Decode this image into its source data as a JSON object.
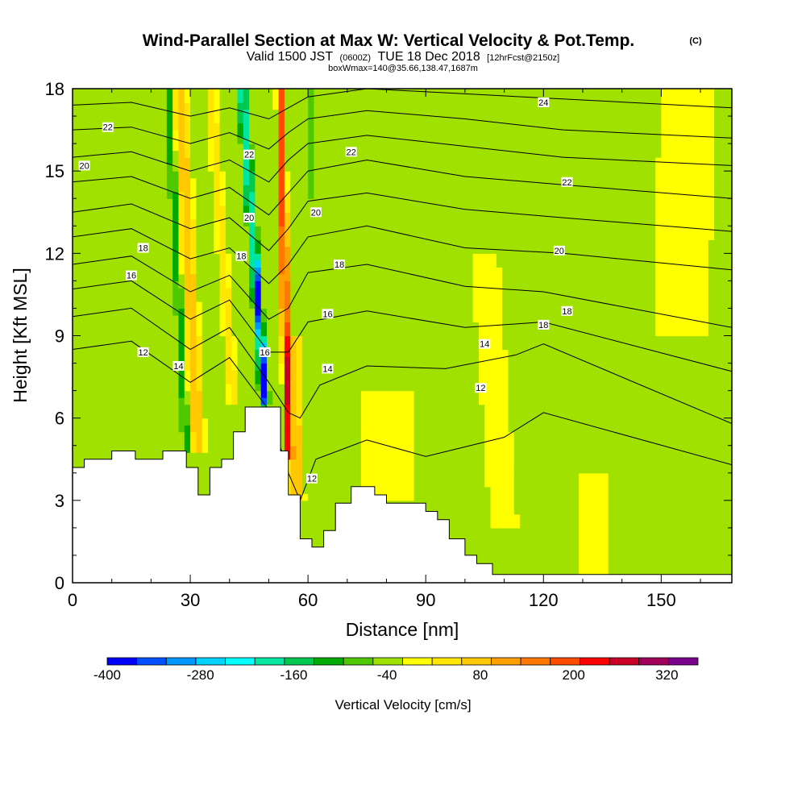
{
  "chart_data": {
    "type": "heatmap",
    "title": "Wind-Parallel Section at Max W: Vertical Velocity & Pot.Temp.",
    "title_mark": "(C)",
    "subtitle_parts": [
      "Valid 1500 JST",
      "(0600Z)",
      "TUE 18 Dec 2018",
      "[12hrFcst@2150z]"
    ],
    "subtitle2": "boxWmax=140@35.66,138.47,1687m",
    "xlabel": "Distance [nm]",
    "ylabel": "Height [Kft MSL]",
    "xlim": [
      0,
      168
    ],
    "ylim": [
      0,
      18
    ],
    "x_ticks": [
      0,
      30,
      60,
      90,
      120,
      150
    ],
    "x_tick_labels": [
      "0",
      "30",
      "60",
      "90",
      "120",
      "150"
    ],
    "y_ticks": [
      0,
      3,
      6,
      9,
      12,
      15,
      18
    ],
    "y_tick_labels": [
      "0",
      "3",
      "6",
      "9",
      "12",
      "15",
      "18"
    ],
    "colorbar": {
      "label": "Vertical Velocity [cm/s]",
      "min": -400,
      "max": 360,
      "step": 40,
      "tick_values": [
        -400,
        -280,
        -160,
        -40,
        80,
        200,
        320
      ],
      "tick_labels": [
        "-400",
        "-280",
        "-160",
        "-40",
        "80",
        "200",
        "320"
      ],
      "colors": [
        "#0000ff",
        "#0050ff",
        "#0096ff",
        "#00d2ff",
        "#00ffff",
        "#00e6a0",
        "#00c850",
        "#00aa00",
        "#50c800",
        "#a0e100",
        "#ffff00",
        "#ffe600",
        "#ffc800",
        "#ffa000",
        "#ff7800",
        "#ff4b00",
        "#ff0000",
        "#c80028",
        "#a0005a",
        "#78008c"
      ]
    },
    "terrain": [
      [
        0,
        4.2
      ],
      [
        3,
        4.2
      ],
      [
        3,
        4.5
      ],
      [
        10,
        4.5
      ],
      [
        10,
        4.8
      ],
      [
        16,
        4.8
      ],
      [
        16,
        4.5
      ],
      [
        23,
        4.5
      ],
      [
        23,
        4.8
      ],
      [
        29,
        4.8
      ],
      [
        29,
        4.2
      ],
      [
        32,
        4.2
      ],
      [
        32,
        3.2
      ],
      [
        35,
        3.2
      ],
      [
        35,
        4.2
      ],
      [
        38,
        4.2
      ],
      [
        38,
        4.5
      ],
      [
        41,
        4.5
      ],
      [
        41,
        5.5
      ],
      [
        44,
        5.5
      ],
      [
        44,
        6.4
      ],
      [
        53,
        6.4
      ],
      [
        53,
        4.8
      ],
      [
        55,
        4.8
      ],
      [
        55,
        3.2
      ],
      [
        58,
        3.2
      ],
      [
        58,
        1.6
      ],
      [
        61,
        1.6
      ],
      [
        61,
        1.3
      ],
      [
        64,
        1.3
      ],
      [
        64,
        1.9
      ],
      [
        67,
        1.9
      ],
      [
        67,
        2.9
      ],
      [
        71,
        2.9
      ],
      [
        71,
        3.5
      ],
      [
        77,
        3.5
      ],
      [
        77,
        3.2
      ],
      [
        80,
        3.2
      ],
      [
        80,
        2.9
      ],
      [
        90,
        2.9
      ],
      [
        90,
        2.6
      ],
      [
        93,
        2.6
      ],
      [
        93,
        2.3
      ],
      [
        96,
        2.3
      ],
      [
        96,
        1.6
      ],
      [
        100,
        1.6
      ],
      [
        100,
        1
      ],
      [
        103,
        1
      ],
      [
        103,
        0.7
      ],
      [
        107,
        0.7
      ],
      [
        107,
        0.3
      ],
      [
        168,
        0.3
      ],
      [
        168,
        0
      ],
      [
        0,
        0
      ]
    ],
    "background_value": -20,
    "velocity_features": [
      {
        "x": 29,
        "y0": 4.8,
        "y1": 18,
        "x_shift_per_kft": -0.35,
        "half_width": 1.2,
        "value": -100
      },
      {
        "x": 32,
        "y0": 4.8,
        "y1": 18,
        "x_shift_per_kft": -0.35,
        "half_width": 2.4,
        "value": 100
      },
      {
        "x": 41,
        "y0": 6.5,
        "y1": 18,
        "x_shift_per_kft": -0.5,
        "half_width": 1.8,
        "value": 60
      },
      {
        "x": 49,
        "y0": 6.4,
        "y1": 18,
        "x_shift_per_kft": -0.5,
        "half_width": 1.6,
        "value": -190
      },
      {
        "x": 50,
        "y0": 5,
        "y1": 12,
        "x_shift_per_kft": -0.5,
        "half_width": 0.8,
        "value": -250
      },
      {
        "x": 55,
        "y0": 4.5,
        "y1": 18,
        "x_shift_per_kft": -0.15,
        "half_width": 1.4,
        "value": 230
      },
      {
        "x": 57,
        "y0": 3,
        "y1": 9,
        "x_shift_per_kft": -0.1,
        "half_width": 2.5,
        "value": 100
      },
      {
        "x": 61,
        "y0": 14,
        "y1": 18,
        "x_shift_per_kft": -0.2,
        "half_width": 1.2,
        "value": -60
      },
      {
        "x": 80,
        "y0": 3,
        "y1": 7,
        "x_shift_per_kft": 0,
        "half_width": 10,
        "value": 20
      },
      {
        "x": 110,
        "y0": 2,
        "y1": 12,
        "x_shift_per_kft": -0.5,
        "half_width": 5,
        "value": 20
      },
      {
        "x": 133,
        "y0": 0.3,
        "y1": 4,
        "x_shift_per_kft": 0,
        "half_width": 4,
        "value": 40
      },
      {
        "x": 155,
        "y0": 9,
        "y1": 18,
        "x_shift_per_kft": 0.2,
        "half_width": 10,
        "value": 20
      }
    ],
    "pot_temp_contours": [
      {
        "value": 12,
        "label": "12"
      },
      {
        "value": 14,
        "label": "14"
      },
      {
        "value": 16,
        "label": "16"
      },
      {
        "value": 18,
        "label": "18"
      },
      {
        "value": 20,
        "label": "20"
      },
      {
        "value": 22,
        "label": "22"
      },
      {
        "value": 24,
        "label": "24"
      }
    ],
    "pot_temp_lines": [
      [
        [
          0,
          8.5
        ],
        [
          15,
          8.8
        ],
        [
          30,
          7.3
        ],
        [
          40,
          8.2
        ],
        [
          50,
          6.3
        ],
        [
          55,
          4
        ],
        [
          58,
          3
        ],
        [
          62,
          4.5
        ],
        [
          75,
          5.2
        ],
        [
          90,
          4.6
        ],
        [
          110,
          5.3
        ],
        [
          120,
          6.2
        ],
        [
          168,
          4.3
        ]
      ],
      [
        [
          0,
          9.7
        ],
        [
          15,
          10
        ],
        [
          30,
          8.5
        ],
        [
          40,
          9.3
        ],
        [
          50,
          7.3
        ],
        [
          55,
          6.2
        ],
        [
          58,
          6
        ],
        [
          63,
          7.2
        ],
        [
          75,
          7.9
        ],
        [
          95,
          7.8
        ],
        [
          113,
          8.3
        ],
        [
          120,
          8.7
        ],
        [
          168,
          5.8
        ]
      ],
      [
        [
          0,
          10.7
        ],
        [
          15,
          11
        ],
        [
          30,
          9.6
        ],
        [
          40,
          10.3
        ],
        [
          50,
          8.4
        ],
        [
          55,
          8.4
        ],
        [
          60,
          9.5
        ],
        [
          75,
          9.9
        ],
        [
          100,
          9.3
        ],
        [
          120,
          9.5
        ],
        [
          168,
          7.7
        ]
      ],
      [
        [
          0,
          11.6
        ],
        [
          15,
          11.9
        ],
        [
          30,
          10.6
        ],
        [
          40,
          11.2
        ],
        [
          50,
          9.6
        ],
        [
          55,
          10
        ],
        [
          60,
          11.3
        ],
        [
          75,
          11.6
        ],
        [
          100,
          10.8
        ],
        [
          120,
          10.6
        ],
        [
          168,
          9.3
        ]
      ],
      [
        [
          0,
          12.6
        ],
        [
          15,
          12.9
        ],
        [
          30,
          11.8
        ],
        [
          40,
          12.2
        ],
        [
          50,
          10.9
        ],
        [
          55,
          11.6
        ],
        [
          60,
          12.6
        ],
        [
          75,
          13
        ],
        [
          100,
          12.2
        ],
        [
          125,
          12
        ],
        [
          168,
          11.4
        ]
      ],
      [
        [
          0,
          13.5
        ],
        [
          15,
          13.8
        ],
        [
          30,
          12.9
        ],
        [
          40,
          13.3
        ],
        [
          50,
          12.1
        ],
        [
          55,
          12.9
        ],
        [
          60,
          13.9
        ],
        [
          75,
          14.2
        ],
        [
          100,
          13.6
        ],
        [
          125,
          13.3
        ],
        [
          168,
          12.8
        ]
      ],
      [
        [
          0,
          14.6
        ],
        [
          15,
          14.8
        ],
        [
          30,
          14
        ],
        [
          40,
          14.4
        ],
        [
          50,
          13.4
        ],
        [
          55,
          14.2
        ],
        [
          60,
          15
        ],
        [
          75,
          15.4
        ],
        [
          100,
          14.8
        ],
        [
          125,
          14.5
        ],
        [
          168,
          14
        ]
      ],
      [
        [
          0,
          15.5
        ],
        [
          15,
          15.7
        ],
        [
          30,
          15
        ],
        [
          40,
          15.4
        ],
        [
          50,
          14.6
        ],
        [
          55,
          15.4
        ],
        [
          60,
          16
        ],
        [
          75,
          16.3
        ],
        [
          100,
          15.9
        ],
        [
          125,
          15.5
        ],
        [
          168,
          15.2
        ]
      ],
      [
        [
          0,
          16.5
        ],
        [
          15,
          16.6
        ],
        [
          30,
          16
        ],
        [
          40,
          16.4
        ],
        [
          50,
          15.8
        ],
        [
          55,
          16.4
        ],
        [
          60,
          16.9
        ],
        [
          75,
          17.2
        ],
        [
          100,
          16.9
        ],
        [
          125,
          16.5
        ],
        [
          168,
          16.2
        ]
      ],
      [
        [
          0,
          17.4
        ],
        [
          15,
          17.5
        ],
        [
          30,
          17
        ],
        [
          40,
          17.3
        ],
        [
          50,
          16.9
        ],
        [
          55,
          17.3
        ],
        [
          60,
          17.7
        ],
        [
          75,
          18
        ],
        [
          168,
          17.3
        ]
      ]
    ],
    "contour_labels": [
      {
        "text": "22",
        "x": 9,
        "y": 16.6
      },
      {
        "text": "20",
        "x": 3,
        "y": 15.2
      },
      {
        "text": "18",
        "x": 18,
        "y": 12.2
      },
      {
        "text": "16",
        "x": 15,
        "y": 11.2
      },
      {
        "text": "12",
        "x": 18,
        "y": 8.4
      },
      {
        "text": "14",
        "x": 27,
        "y": 7.9
      },
      {
        "text": "22",
        "x": 45,
        "y": 15.6
      },
      {
        "text": "20",
        "x": 45,
        "y": 13.3
      },
      {
        "text": "18",
        "x": 43,
        "y": 11.9
      },
      {
        "text": "16",
        "x": 49,
        "y": 8.4
      },
      {
        "text": "20",
        "x": 62,
        "y": 13.5
      },
      {
        "text": "18",
        "x": 68,
        "y": 11.6
      },
      {
        "text": "16",
        "x": 65,
        "y": 9.8
      },
      {
        "text": "14",
        "x": 65,
        "y": 7.8
      },
      {
        "text": "12",
        "x": 61,
        "y": 3.8
      },
      {
        "text": "22",
        "x": 71,
        "y": 15.7
      },
      {
        "text": "24",
        "x": 120,
        "y": 17.5
      },
      {
        "text": "22",
        "x": 126,
        "y": 14.6
      },
      {
        "text": "20",
        "x": 124,
        "y": 12.1
      },
      {
        "text": "18",
        "x": 126,
        "y": 9.9
      },
      {
        "text": "18",
        "x": 120,
        "y": 9.4
      },
      {
        "text": "14",
        "x": 105,
        "y": 8.7
      },
      {
        "text": "12",
        "x": 104,
        "y": 7.1
      }
    ]
  }
}
